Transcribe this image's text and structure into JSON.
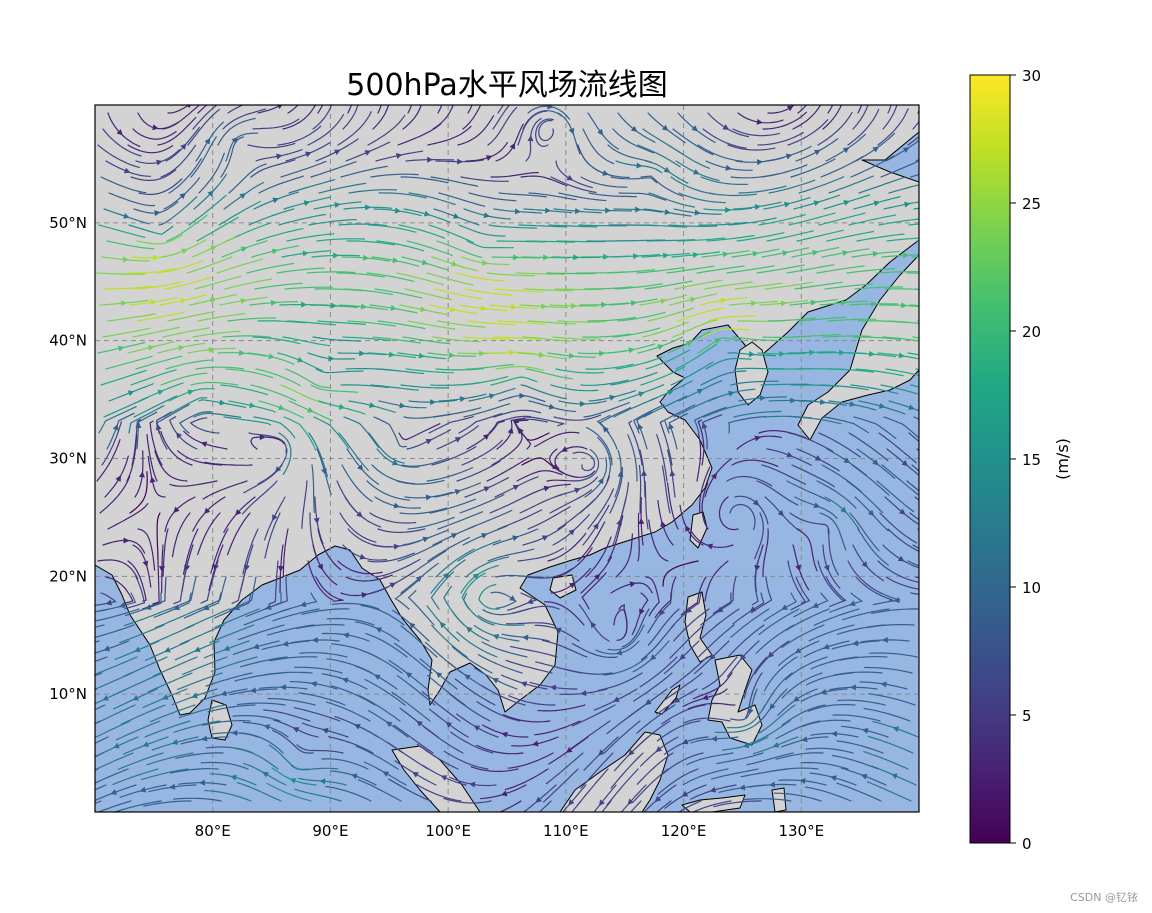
{
  "title": "500hPa水平风场流线图",
  "credit": "CSDN @钇铱",
  "map": {
    "extent": {
      "lon": [
        70,
        140
      ],
      "lat": [
        0,
        60
      ]
    },
    "land_color": "#d3d3d3",
    "ocean_color": "#97b6e1",
    "gridlines": "dashed",
    "x_ticks": [
      {
        "value": 80,
        "label": "80°E"
      },
      {
        "value": 90,
        "label": "90°E"
      },
      {
        "value": 100,
        "label": "100°E"
      },
      {
        "value": 110,
        "label": "110°E"
      },
      {
        "value": 120,
        "label": "120°E"
      },
      {
        "value": 130,
        "label": "130°E"
      }
    ],
    "y_ticks": [
      {
        "value": 10,
        "label": "10°N"
      },
      {
        "value": 20,
        "label": "20°N"
      },
      {
        "value": 30,
        "label": "30°N"
      },
      {
        "value": 40,
        "label": "40°N"
      },
      {
        "value": 50,
        "label": "50°N"
      }
    ]
  },
  "colorbar": {
    "label": "(m/s)",
    "colormap": "viridis",
    "range": [
      0,
      30
    ],
    "ticks": [
      {
        "value": 0,
        "label": "0"
      },
      {
        "value": 5,
        "label": "5"
      },
      {
        "value": 10,
        "label": "10"
      },
      {
        "value": 15,
        "label": "15"
      },
      {
        "value": 20,
        "label": "20"
      },
      {
        "value": 25,
        "label": "25"
      },
      {
        "value": 30,
        "label": "30"
      }
    ]
  }
}
